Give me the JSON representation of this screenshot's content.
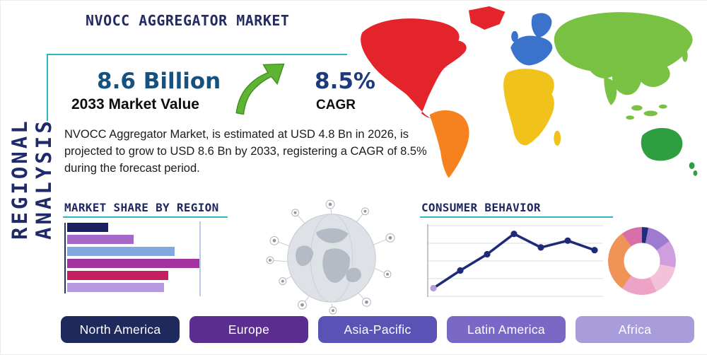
{
  "page": {
    "title": "NVOCC AGGREGATOR MARKET",
    "vertical_label": "REGIONAL ANALYSIS"
  },
  "highlights": {
    "market_value": "8.6 Billion",
    "market_value_label": "2033 Market Value",
    "cagr_value": "8.5%",
    "cagr_label": "CAGR"
  },
  "description": "NVOCC Aggregator Market, is estimated at USD 4.8 Bn in 2026, is projected to grow to USD 8.6 Bn by 2033, registering a CAGR of 8.5% during the forecast period.",
  "sections": {
    "market_share_title": "MARKET SHARE BY REGION",
    "consumer_behavior_title": "CONSUMER BEHAVIOR"
  },
  "regions": [
    {
      "label": "North America",
      "color": "#1e2a5c"
    },
    {
      "label": "Europe",
      "color": "#5c2d91"
    },
    {
      "label": "Asia-Pacific",
      "color": "#5a52b5"
    },
    {
      "label": "Latin America",
      "color": "#7a68c6"
    },
    {
      "label": "Africa",
      "color": "#a89cdb"
    }
  ],
  "colors": {
    "accent_teal": "#2fb5c8",
    "navy": "#232a66",
    "stat_blue": "#16527f",
    "arrow_green": "#5cb432",
    "map_north_america": "#e3242b",
    "map_south_america": "#f5821f",
    "map_europe": "#3a72cc",
    "map_africa": "#f2c21c",
    "map_asia": "#79c143",
    "map_oceania": "#2f9e41"
  },
  "chart_data": [
    {
      "type": "bar",
      "orientation": "horizontal",
      "title": "MARKET SHARE BY REGION",
      "note": "bars unlabeled in source; values are relative lengths as % of longest bar",
      "values": [
        31,
        50,
        81,
        100,
        76,
        73
      ],
      "colors": [
        "#1a2060",
        "#a569c9",
        "#82a8e0",
        "#a4329e",
        "#c41f60",
        "#b79ade"
      ],
      "grid": true
    },
    {
      "type": "line",
      "title": "CONSUMER BEHAVIOR",
      "note": "axes unlabeled in source; values estimated 0-100",
      "x": [
        1,
        2,
        3,
        4,
        5,
        6,
        7
      ],
      "values": [
        12,
        38,
        62,
        92,
        72,
        82,
        68
      ],
      "line_color": "#1e2a78",
      "first_marker_color": "#b39ddb",
      "grid": true
    },
    {
      "type": "pie",
      "donut": true,
      "title": "regional share donut (unlabeled in source)",
      "slices": [
        {
          "color": "#222c7a",
          "value": 3
        },
        {
          "color": "#9d7bd0",
          "value": 12
        },
        {
          "color": "#cf9fdd",
          "value": 13
        },
        {
          "color": "#f3c1d8",
          "value": 15
        },
        {
          "color": "#eda3c6",
          "value": 17
        },
        {
          "color": "#ef9357",
          "value": 30
        },
        {
          "color": "#d96fa8",
          "value": 10
        }
      ]
    }
  ]
}
